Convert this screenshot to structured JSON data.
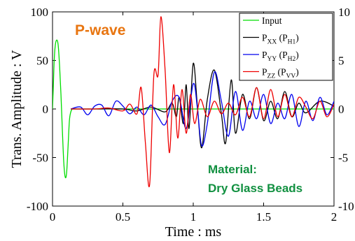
{
  "chart_data": {
    "type": "line",
    "title": "",
    "xlabel": "Time : ms",
    "ylabel": "Trans. Amplitude : V",
    "xlim": [
      0,
      2
    ],
    "ylim_left": [
      -100,
      100
    ],
    "ylim_right": [
      -10,
      10
    ],
    "x_ticks": [
      "0",
      "0.5",
      "1",
      "1.5",
      "2"
    ],
    "y_left_ticks": [
      "100",
      "50",
      "0",
      "-50",
      "-100"
    ],
    "y_right_ticks": [
      "10",
      "5",
      "0",
      "-5",
      "-10"
    ],
    "grid": false,
    "legend_position": "top-right",
    "annotations": {
      "wave_type": "P-wave",
      "material_label": "Material:",
      "material_value": "Dry Glass Beads"
    },
    "series": [
      {
        "name": "Input",
        "legend_main": "Input",
        "axis": "left",
        "color": "#00dd00",
        "x": [
          0.0,
          0.005,
          0.012,
          0.02,
          0.03,
          0.04,
          0.05,
          0.06,
          0.07,
          0.08,
          0.09,
          0.1,
          0.11,
          0.12,
          0.13,
          0.14,
          0.15,
          0.2,
          0.3,
          0.5,
          1.0,
          1.5,
          2.0
        ],
        "y": [
          0,
          20,
          50,
          66,
          71,
          66,
          45,
          15,
          -22,
          -55,
          -70,
          -66,
          -40,
          -12,
          -3,
          0,
          0,
          0,
          0,
          0,
          0,
          0,
          0
        ]
      },
      {
        "name": "PXX (PH1)",
        "legend_main": "P",
        "legend_sub1": "XX",
        "legend_mid": " (P",
        "legend_sub2": "H1",
        "legend_end": ")",
        "axis": "right",
        "color": "#000000",
        "x": [
          0.13,
          0.3,
          0.5,
          0.6,
          0.7,
          0.8,
          0.85,
          0.88,
          0.9,
          0.93,
          0.95,
          0.97,
          1.0,
          1.03,
          1.06,
          1.1,
          1.15,
          1.2,
          1.23,
          1.27,
          1.3,
          1.35,
          1.4,
          1.45,
          1.5,
          1.55,
          1.6,
          1.65,
          1.7,
          1.75,
          1.8,
          1.9,
          2.0
        ],
        "y": [
          0,
          0,
          0,
          -0.2,
          0.2,
          -0.3,
          0.6,
          -0.8,
          1.2,
          -1.5,
          2.5,
          -2.0,
          4.7,
          0.2,
          -4.0,
          1.0,
          4.0,
          -0.5,
          -3.5,
          3.0,
          -2.5,
          1.5,
          -1.0,
          2.2,
          -1.2,
          0.8,
          -1.0,
          1.8,
          -0.8,
          0.6,
          -0.4,
          0.8,
          0.3
        ]
      },
      {
        "name": "PYY (PH2)",
        "legend_main": "P",
        "legend_sub1": "YY",
        "legend_mid": " (P",
        "legend_sub2": "H2",
        "legend_end": ")",
        "axis": "right",
        "color": "#0000ee",
        "x": [
          0.13,
          0.2,
          0.25,
          0.3,
          0.35,
          0.4,
          0.45,
          0.5,
          0.55,
          0.6,
          0.65,
          0.7,
          0.75,
          0.8,
          0.85,
          0.9,
          0.95,
          1.0,
          1.03,
          1.06,
          1.1,
          1.15,
          1.2,
          1.25,
          1.3,
          1.35,
          1.4,
          1.45,
          1.5,
          1.55,
          1.6,
          1.65,
          1.7,
          1.75,
          1.8,
          1.85,
          1.9,
          1.95,
          2.0
        ],
        "y": [
          0,
          0.2,
          -0.6,
          0.3,
          0.4,
          -0.7,
          0.8,
          0.3,
          -0.5,
          0.2,
          -0.6,
          0.4,
          -0.8,
          -1.6,
          0.8,
          1.2,
          -2.0,
          2.6,
          0.0,
          -3.8,
          -1.5,
          3.8,
          0.8,
          -2.8,
          1.8,
          -2.2,
          0.8,
          -1.0,
          1.5,
          -1.5,
          0.6,
          -1.0,
          1.5,
          -1.8,
          0.8,
          -1.2,
          1.2,
          -0.6,
          0.8
        ]
      },
      {
        "name": "PZZ (PVV)",
        "legend_main": "P",
        "legend_sub1": "ZZ",
        "legend_mid": " (P",
        "legend_sub2": "VV",
        "legend_end": ")",
        "axis": "right",
        "color": "#ee0000",
        "x": [
          0.13,
          0.3,
          0.4,
          0.5,
          0.55,
          0.6,
          0.63,
          0.66,
          0.69,
          0.72,
          0.75,
          0.77,
          0.8,
          0.83,
          0.86,
          0.89,
          0.92,
          0.95,
          0.98,
          1.01,
          1.05,
          1.1,
          1.15,
          1.2,
          1.25,
          1.3,
          1.35,
          1.4,
          1.45,
          1.5,
          1.55,
          1.6,
          1.65,
          1.7,
          1.75,
          1.8,
          1.85,
          1.9,
          1.95,
          2.0
        ],
        "y": [
          0,
          0,
          0.1,
          -0.2,
          0.5,
          -0.5,
          2.2,
          -3.5,
          -7.8,
          3.5,
          3.5,
          9.5,
          4.0,
          -4.5,
          2.5,
          -3.0,
          2.0,
          -2.5,
          1.5,
          -1.5,
          1.0,
          -0.8,
          0.8,
          -0.5,
          0.6,
          -0.6,
          1.2,
          -0.8,
          2.2,
          -1.0,
          2.0,
          -0.8,
          1.5,
          -0.8,
          1.2,
          0.2,
          -1.0,
          0.8,
          -0.8,
          0.5
        ]
      }
    ]
  }
}
